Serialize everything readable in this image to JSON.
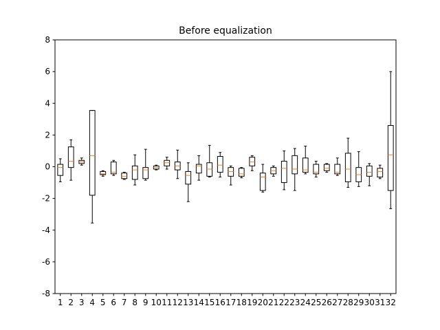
{
  "chart_data": {
    "type": "boxplot",
    "title": "Before equalization",
    "xlabel": "",
    "ylabel": "",
    "ylim": [
      -8,
      8
    ],
    "yticks": [
      -8,
      -6,
      -4,
      -2,
      0,
      2,
      4,
      6,
      8
    ],
    "grid": false,
    "categories": [
      "1",
      "2",
      "3",
      "4",
      "5",
      "6",
      "7",
      "8",
      "9",
      "10",
      "11",
      "12",
      "13",
      "14",
      "15",
      "16",
      "17",
      "18",
      "19",
      "20",
      "21",
      "22",
      "23",
      "24",
      "25",
      "26",
      "27",
      "28",
      "29",
      "30",
      "31",
      "32"
    ],
    "boxes": [
      {
        "whisker_low": -0.95,
        "q1": -0.55,
        "median": -0.05,
        "q3": 0.15,
        "whisker_high": 0.5
      },
      {
        "whisker_low": -0.85,
        "q1": -0.05,
        "median": 0.35,
        "q3": 1.25,
        "whisker_high": 1.7
      },
      {
        "whisker_low": 0.1,
        "q1": 0.2,
        "median": 0.3,
        "q3": 0.4,
        "whisker_high": 0.55
      },
      {
        "whisker_low": -3.55,
        "q1": -1.8,
        "median": 0.7,
        "q3": 3.55,
        "whisker_high": 3.55
      },
      {
        "whisker_low": -0.6,
        "q1": -0.5,
        "median": -0.45,
        "q3": -0.3,
        "whisker_high": -0.25
      },
      {
        "whisker_low": -0.55,
        "q1": -0.45,
        "median": -0.35,
        "q3": 0.3,
        "whisker_high": 0.4
      },
      {
        "whisker_low": -0.8,
        "q1": -0.75,
        "median": -0.6,
        "q3": -0.4,
        "whisker_high": -0.35
      },
      {
        "whisker_low": -1.15,
        "q1": -0.8,
        "median": -0.2,
        "q3": 0.05,
        "whisker_high": 0.75
      },
      {
        "whisker_low": -0.85,
        "q1": -0.75,
        "median": -0.2,
        "q3": -0.05,
        "whisker_high": 1.1
      },
      {
        "whisker_low": -0.2,
        "q1": -0.15,
        "median": -0.05,
        "q3": 0.05,
        "whisker_high": 0.1
      },
      {
        "whisker_low": -0.15,
        "q1": 0.05,
        "median": 0.25,
        "q3": 0.4,
        "whisker_high": 0.6
      },
      {
        "whisker_low": -0.75,
        "q1": -0.2,
        "median": 0.05,
        "q3": 0.3,
        "whisker_high": 1.05
      },
      {
        "whisker_low": -2.2,
        "q1": -1.1,
        "median": -0.55,
        "q3": -0.3,
        "whisker_high": 0.25
      },
      {
        "whisker_low": -0.85,
        "q1": -0.4,
        "median": 0.05,
        "q3": 0.15,
        "whisker_high": 0.7
      },
      {
        "whisker_low": -0.65,
        "q1": -0.6,
        "median": -0.15,
        "q3": 0.25,
        "whisker_high": 1.35
      },
      {
        "whisker_low": -0.65,
        "q1": -0.35,
        "median": 0.1,
        "q3": 0.65,
        "whisker_high": 0.9
      },
      {
        "whisker_low": -1.15,
        "q1": -0.6,
        "median": -0.3,
        "q3": -0.05,
        "whisker_high": 0.05
      },
      {
        "whisker_low": -0.7,
        "q1": -0.6,
        "median": -0.45,
        "q3": -0.1,
        "whisker_high": -0.05
      },
      {
        "whisker_low": -0.25,
        "q1": 0.05,
        "median": 0.3,
        "q3": 0.6,
        "whisker_high": 0.7
      },
      {
        "whisker_low": -1.6,
        "q1": -1.5,
        "median": -0.65,
        "q3": -0.4,
        "whisker_high": 0.15
      },
      {
        "whisker_low": -0.6,
        "q1": -0.45,
        "median": -0.25,
        "q3": -0.05,
        "whisker_high": 0.05
      },
      {
        "whisker_low": -1.45,
        "q1": -1.0,
        "median": -0.1,
        "q3": 0.35,
        "whisker_high": 1.0
      },
      {
        "whisker_low": -1.5,
        "q1": -0.45,
        "median": -0.15,
        "q3": 0.7,
        "whisker_high": 1.15
      },
      {
        "whisker_low": -0.45,
        "q1": -0.35,
        "median": -0.2,
        "q3": 0.55,
        "whisker_high": 1.3
      },
      {
        "whisker_low": -0.65,
        "q1": -0.45,
        "median": -0.35,
        "q3": 0.15,
        "whisker_high": 0.35
      },
      {
        "whisker_low": -0.35,
        "q1": -0.25,
        "median": -0.1,
        "q3": 0.15,
        "whisker_high": 0.2
      },
      {
        "whisker_low": -0.55,
        "q1": -0.45,
        "median": -0.35,
        "q3": 0.15,
        "whisker_high": 0.55
      },
      {
        "whisker_low": -1.3,
        "q1": -0.95,
        "median": -0.15,
        "q3": 0.85,
        "whisker_high": 1.8
      },
      {
        "whisker_low": -1.25,
        "q1": -0.95,
        "median": -0.5,
        "q3": -0.05,
        "whisker_high": 0.95
      },
      {
        "whisker_low": -1.2,
        "q1": -0.6,
        "median": -0.35,
        "q3": 0.05,
        "whisker_high": 0.2
      },
      {
        "whisker_low": -0.75,
        "q1": -0.65,
        "median": -0.3,
        "q3": -0.1,
        "whisker_high": 0.1
      },
      {
        "whisker_low": -2.65,
        "q1": -1.5,
        "median": 0.75,
        "q3": 2.6,
        "whisker_high": 6.0
      }
    ],
    "colors": {
      "box": "#000000",
      "median": "#ff7f0e",
      "axes": "#000000",
      "background": "#ffffff"
    }
  }
}
